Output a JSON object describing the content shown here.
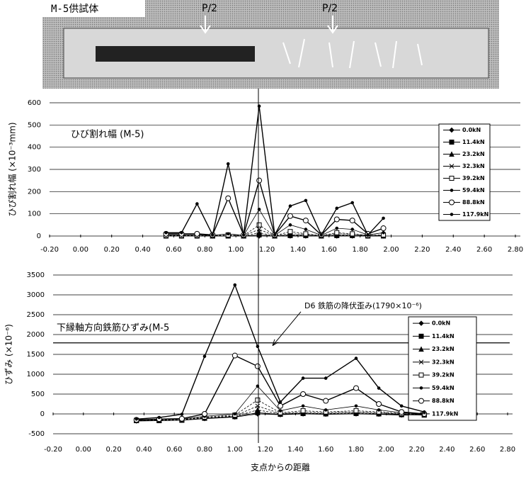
{
  "photo": {
    "label": "M-5供試体",
    "loads": [
      "P/2",
      "P/2"
    ]
  },
  "chart_data": [
    {
      "type": "line",
      "title": "ひび割れ幅 (M-5)",
      "ylabel": "ひび割れ幅 (×10⁻³mm)",
      "xlim": [
        -0.2,
        2.8
      ],
      "ylim": [
        0,
        600
      ],
      "grid": true,
      "legend": "right",
      "vline": 1.15,
      "xticks": [
        {
          "value": -0.2,
          "label": "-0.20"
        },
        {
          "value": 0,
          "label": "0.00"
        },
        {
          "value": 0.2,
          "label": "0.20"
        },
        {
          "value": 0.4,
          "label": "0.40"
        },
        {
          "value": 0.6,
          "label": "0.60"
        },
        {
          "value": 0.8,
          "label": "0.80"
        },
        {
          "value": 1,
          "label": "1.00"
        },
        {
          "value": 1.2,
          "label": "1.20"
        },
        {
          "value": 1.4,
          "label": "1.40"
        },
        {
          "value": 1.6,
          "label": "1.60"
        },
        {
          "value": 1.8,
          "label": "1.80"
        },
        {
          "value": 2,
          "label": "2.00"
        },
        {
          "value": 2.2,
          "label": "2.20"
        },
        {
          "value": 2.4,
          "label": "2.40"
        },
        {
          "value": 2.6,
          "label": "2.60"
        },
        {
          "value": 2.8,
          "label": "2.80"
        }
      ],
      "yticks": [
        0,
        100,
        200,
        300,
        400,
        500,
        600
      ],
      "x": [
        0.55,
        0.65,
        0.75,
        0.85,
        0.95,
        1.05,
        1.15,
        1.25,
        1.35,
        1.45,
        1.55,
        1.65,
        1.75,
        1.85,
        1.95
      ],
      "series": [
        {
          "name": "0.0kN",
          "color": "#000000",
          "values": [
            0,
            0,
            0,
            0,
            0,
            0,
            0,
            0,
            0,
            0,
            0,
            0,
            0,
            0,
            0
          ]
        },
        {
          "name": "11.4kN",
          "color": "#000000",
          "values": [
            0,
            0,
            0,
            0,
            0,
            0,
            5,
            0,
            2,
            2,
            0,
            2,
            2,
            0,
            0
          ]
        },
        {
          "name": "23.2kN",
          "color": "#000000",
          "values": [
            1,
            1,
            1,
            0,
            2,
            0,
            15,
            0,
            5,
            4,
            0,
            5,
            4,
            1,
            2
          ]
        },
        {
          "name": "32.3kN",
          "color": "#000000",
          "values": [
            2,
            2,
            2,
            1,
            3,
            1,
            30,
            1,
            10,
            8,
            1,
            10,
            8,
            2,
            3
          ]
        },
        {
          "name": "39.2kN",
          "color": "#000000",
          "values": [
            3,
            3,
            3,
            2,
            5,
            2,
            50,
            2,
            20,
            10,
            2,
            15,
            10,
            3,
            5
          ]
        },
        {
          "name": "59.4kN",
          "color": "#000000",
          "values": [
            5,
            5,
            5,
            3,
            10,
            3,
            120,
            3,
            50,
            30,
            3,
            35,
            30,
            5,
            15
          ]
        },
        {
          "name": "88.8kN",
          "color": "#000000",
          "values": [
            10,
            10,
            10,
            5,
            170,
            5,
            250,
            5,
            90,
            70,
            5,
            75,
            70,
            10,
            35
          ]
        },
        {
          "name": "117.9kN",
          "color": "#000000",
          "values": [
            15,
            15,
            145,
            5,
            325,
            5,
            585,
            5,
            135,
            160,
            5,
            125,
            150,
            5,
            80
          ]
        }
      ]
    },
    {
      "type": "line",
      "title": "下縁軸方向鉄筋ひずみ(M-5",
      "ylabel": "ひずみ (×10⁻⁶)",
      "xlabel": "支点からの距離",
      "annotation": "D6 鉄筋の降伏歪み(1790×10⁻⁶)",
      "reference_line": 1790,
      "xlim": [
        -0.2,
        2.8
      ],
      "ylim": [
        -500,
        3500
      ],
      "grid": true,
      "legend": "right",
      "vline": 1.15,
      "xticks": [
        {
          "value": -0.2,
          "label": "-0.20"
        },
        {
          "value": 0,
          "label": "0.00"
        },
        {
          "value": 0.2,
          "label": "0.20"
        },
        {
          "value": 0.4,
          "label": "0.40"
        },
        {
          "value": 0.6,
          "label": "0.60"
        },
        {
          "value": 0.8,
          "label": "0.80"
        },
        {
          "value": 1,
          "label": "1.00"
        },
        {
          "value": 1.2,
          "label": "1.20"
        },
        {
          "value": 1.4,
          "label": "1.40"
        },
        {
          "value": 1.6,
          "label": "1.60"
        },
        {
          "value": 1.8,
          "label": "1.80"
        },
        {
          "value": 2,
          "label": "2.00"
        },
        {
          "value": 2.2,
          "label": "2.20"
        },
        {
          "value": 2.4,
          "label": "2.40"
        },
        {
          "value": 2.6,
          "label": "2.60"
        },
        {
          "value": 2.8,
          "label": "2.80"
        }
      ],
      "yticks": [
        -500,
        0,
        500,
        1000,
        1500,
        2000,
        2500,
        3000,
        3500
      ],
      "x": [
        0.35,
        0.5,
        0.65,
        0.8,
        1.0,
        1.15,
        1.3,
        1.45,
        1.6,
        1.8,
        1.95,
        2.1,
        2.25
      ],
      "series": [
        {
          "name": "0.0kN",
          "color": "#000000",
          "values": [
            -180,
            -170,
            -160,
            -120,
            -80,
            0,
            -20,
            0,
            -10,
            0,
            -10,
            -30,
            -30
          ]
        },
        {
          "name": "11.4kN",
          "color": "#000000",
          "values": [
            -170,
            -170,
            -160,
            -110,
            -70,
            30,
            -10,
            10,
            0,
            10,
            0,
            -20,
            -30
          ]
        },
        {
          "name": "23.2kN",
          "color": "#000000",
          "values": [
            -170,
            -160,
            -150,
            -100,
            -60,
            100,
            0,
            20,
            10,
            30,
            10,
            -10,
            -20
          ]
        },
        {
          "name": "32.3kN",
          "color": "#000000",
          "values": [
            -170,
            -160,
            -150,
            -100,
            -50,
            200,
            10,
            40,
            30,
            50,
            30,
            0,
            -20
          ]
        },
        {
          "name": "39.2kN",
          "color": "#000000",
          "values": [
            -160,
            -150,
            -140,
            -80,
            -30,
            350,
            30,
            80,
            50,
            80,
            50,
            10,
            -20
          ]
        },
        {
          "name": "59.4kN",
          "color": "#000000",
          "values": [
            -160,
            -140,
            -130,
            -60,
            0,
            700,
            80,
            200,
            100,
            200,
            100,
            30,
            -10
          ]
        },
        {
          "name": "88.8kN",
          "color": "#000000",
          "values": [
            -150,
            -130,
            -120,
            0,
            1470,
            1200,
            200,
            500,
            330,
            650,
            250,
            50,
            0
          ]
        },
        {
          "name": "117.9kN",
          "color": "#000000",
          "values": [
            -130,
            -90,
            -10,
            1450,
            3250,
            1700,
            300,
            900,
            900,
            1400,
            650,
            200,
            50
          ]
        }
      ]
    }
  ]
}
